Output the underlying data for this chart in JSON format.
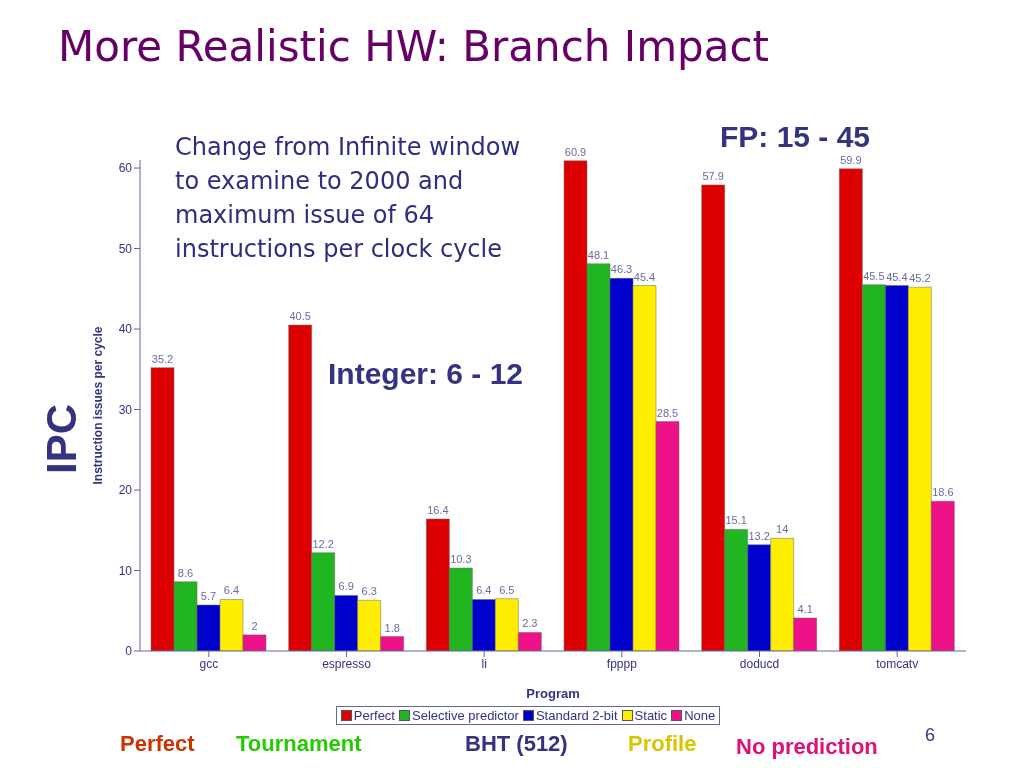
{
  "chart_data": {
    "type": "bar",
    "title": "More Realistic HW: Branch Impact",
    "xlabel": "Program",
    "ylabel": "Instruction issues per cycle",
    "categories": [
      "gcc",
      "espresso",
      "li",
      "fpppp",
      "doducd",
      "tomcatv"
    ],
    "series": [
      {
        "name": "Perfect",
        "color": "#dd0000",
        "values": [
          35.2,
          40.5,
          16.4,
          60.9,
          57.9,
          59.9
        ]
      },
      {
        "name": "Selective predictor",
        "color": "#22b522",
        "values": [
          8.6,
          12.2,
          10.3,
          48.1,
          15.1,
          45.5
        ]
      },
      {
        "name": "Standard 2-bit",
        "color": "#0000cc",
        "values": [
          5.7,
          6.9,
          6.4,
          46.3,
          13.2,
          45.4
        ]
      },
      {
        "name": "Static",
        "color": "#ffee00",
        "values": [
          6.4,
          6.3,
          6.5,
          45.4,
          14,
          45.2
        ]
      },
      {
        "name": "None",
        "color": "#ee1188",
        "values": [
          2,
          1.8,
          2.3,
          28.5,
          4.1,
          18.6
        ]
      }
    ],
    "ylim": [
      0,
      61
    ],
    "yticks": [
      0,
      10,
      20,
      30,
      40,
      50,
      60
    ],
    "data_labels": true,
    "legend": "bottom",
    "annotations": [
      "Change from Infinite window to examine to 2000 and maximum issue of 64 instructions per clock cycle",
      "FP: 15 - 45",
      "Integer: 6 - 12",
      "IPC",
      "Perfect",
      "Tournament",
      "BHT (512)",
      "Profile",
      "No prediction",
      "6"
    ]
  }
}
